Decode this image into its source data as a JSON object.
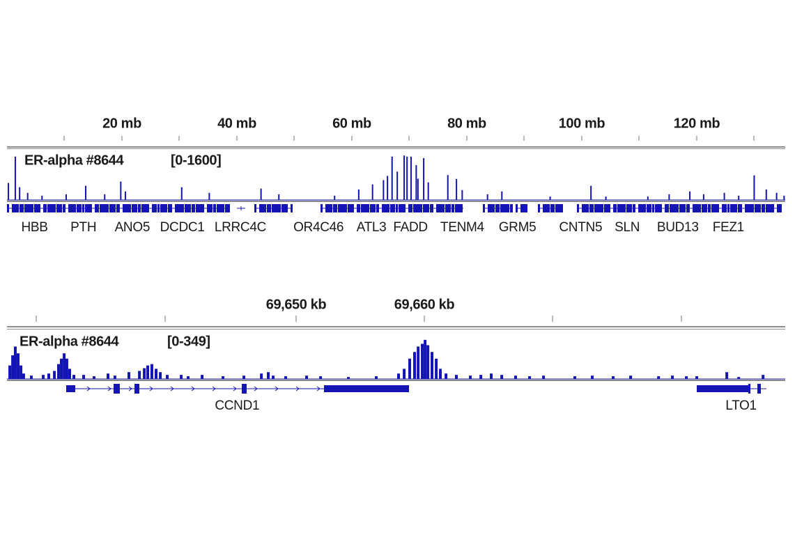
{
  "chart_data": [
    {
      "type": "coverage-track",
      "track_name": "ER-alpha #8644",
      "data_range": "[0-1600]",
      "color": "#1414b4",
      "xlim": [
        0,
        135.4
      ],
      "ylim": [
        0,
        1600
      ],
      "xticks": [
        {
          "value": 20,
          "label": "20 mb"
        },
        {
          "value": 40,
          "label": "40 mb"
        },
        {
          "value": 60,
          "label": "60 mb"
        },
        {
          "value": 80,
          "label": "80 mb"
        },
        {
          "value": 100,
          "label": "100 mb"
        },
        {
          "value": 120,
          "label": "120 mb"
        }
      ],
      "coverage": {
        "x": [
          0.25,
          1.45,
          2.2,
          3.6,
          6.1,
          10.3,
          13.7,
          17.0,
          19.8,
          20.6,
          30.4,
          35.2,
          44.2,
          47.3,
          57,
          61.2,
          63.6,
          65.5,
          66.2,
          67.0,
          67.9,
          69.1,
          69.6,
          70.3,
          71.2,
          71.5,
          72.5,
          73.3,
          76.7,
          78.2,
          79.2,
          83.6,
          86.1,
          94.5,
          101.6,
          104.2,
          111.5,
          115.2,
          118.8,
          121.2,
          124.8,
          127.3,
          130,
          132.1,
          133.9,
          135.2
        ],
        "values": [
          600,
          1530,
          450,
          250,
          150,
          200,
          500,
          200,
          650,
          300,
          450,
          250,
          400,
          200,
          150,
          370,
          550,
          700,
          850,
          1530,
          1000,
          1570,
          1530,
          1530,
          1230,
          750,
          1480,
          620,
          880,
          740,
          350,
          200,
          300,
          120,
          500,
          120,
          120,
          200,
          300,
          200,
          250,
          150,
          870,
          370,
          250,
          150
        ]
      },
      "genes": [
        {
          "label": "HBB",
          "position": 4.8
        },
        {
          "label": "PTH",
          "position": 13.3
        },
        {
          "label": "ANO5",
          "position": 21.8
        },
        {
          "label": "DCDC1",
          "position": 30.5
        },
        {
          "label": "LRRC4C",
          "position": 40.6
        },
        {
          "label": "OR4C46",
          "position": 54.2
        },
        {
          "label": "ATL3",
          "position": 63.4
        },
        {
          "label": "FADD",
          "position": 70.2
        },
        {
          "label": "TENM4",
          "position": 79.2
        },
        {
          "label": "GRM5",
          "position": 88.8
        },
        {
          "label": "CNTN5",
          "position": 99.8
        },
        {
          "label": "SLN",
          "position": 107.9
        },
        {
          "label": "BUD13",
          "position": 116.7
        },
        {
          "label": "FEZ1",
          "position": 125.5
        }
      ]
    },
    {
      "type": "coverage-track",
      "track_name": "ER-alpha #8644",
      "data_range": "[0-349]",
      "color": "#1414b4",
      "xlim": [
        69627.45,
        69688.15
      ],
      "ylim": [
        0,
        349
      ],
      "xticks": [
        {
          "value": 69650,
          "label": "69,650 kb"
        },
        {
          "value": 69660,
          "label": "69,660 kb"
        }
      ],
      "coverage": {
        "x": [
          69627.67,
          69627.89,
          69628.1,
          69628.32,
          69628.54,
          69628.75,
          69629.35,
          69630.28,
          69630.71,
          69631.15,
          69631.47,
          69631.69,
          69631.91,
          69632.12,
          69632.34,
          69632.67,
          69633.43,
          69634.24,
          69635.33,
          69635.87,
          69636.96,
          69637.78,
          69638.16,
          69638.43,
          69638.75,
          69639.08,
          69639.41,
          69639.95,
          69641.04,
          69641.58,
          69642.67,
          69644.3,
          69645.93,
          69647.29,
          69647.83,
          69648.21,
          69649.19,
          69650.82,
          69651.91,
          69654.08,
          69656.25,
          69657.99,
          69658.43,
          69658.86,
          69659.24,
          69659.52,
          69659.84,
          69660.06,
          69660.28,
          69660.6,
          69660.93,
          69661.25,
          69661.69,
          69662.5,
          69663.59,
          69664.41,
          69665.22,
          69666.04,
          69667.12,
          69668.21,
          69669.3,
          69671.74,
          69673.1,
          69674.73,
          69676.09,
          69678.27,
          69679.35,
          69680.44,
          69681.25,
          69683.59,
          69684.52,
          69686.42
        ],
        "values": [
          109,
          191,
          262,
          207,
          109,
          44,
          27,
          33,
          44,
          65,
          120,
          164,
          207,
          164,
          82,
          33,
          33,
          22,
          44,
          27,
          55,
          65,
          87,
          109,
          120,
          82,
          55,
          33,
          33,
          22,
          33,
          22,
          27,
          44,
          55,
          27,
          22,
          27,
          22,
          16,
          22,
          44,
          82,
          164,
          218,
          262,
          284,
          316,
          273,
          218,
          164,
          82,
          44,
          33,
          27,
          33,
          44,
          33,
          27,
          22,
          27,
          22,
          27,
          22,
          27,
          22,
          27,
          22,
          22,
          55,
          16,
          33
        ]
      },
      "genes": [
        {
          "label": "CCND1",
          "position": 69645.4
        },
        {
          "label": "LTO1",
          "position": 69684.7
        }
      ]
    }
  ]
}
